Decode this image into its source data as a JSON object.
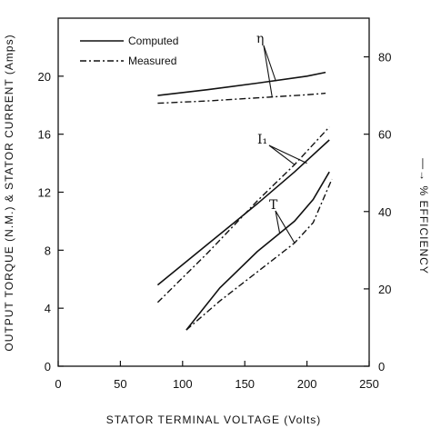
{
  "chart_data": {
    "type": "line",
    "xlabel": "STATOR TERMINAL VOLTAGE (Volts)",
    "ylabel": "OUTPUT TORQUE (N.M.) & STATOR CURRENT (Amps)",
    "y2label": "—→ % EFFICIENCY",
    "xlim": [
      0,
      250
    ],
    "ylim": [
      0,
      24
    ],
    "y2lim": [
      0,
      90
    ],
    "xticks": [
      "0",
      "50",
      "100",
      "150",
      "200",
      "250"
    ],
    "yticks": [
      "0",
      "4",
      "8",
      "12",
      "16",
      "20"
    ],
    "y2ticks": [
      "0",
      "20",
      "40",
      "60",
      "80"
    ],
    "legend": {
      "placement": "top-left",
      "entries": [
        "Computed",
        "Measured"
      ]
    },
    "annotations": [
      "η",
      "I₁",
      "T"
    ],
    "series": [
      {
        "name": "Computed",
        "group": "η",
        "axis": "right",
        "style": "solid",
        "points": [
          [
            80,
            70.0
          ],
          [
            120,
            71.5
          ],
          [
            160,
            73.2
          ],
          [
            200,
            75.0
          ],
          [
            215,
            76.0
          ]
        ]
      },
      {
        "name": "Measured",
        "group": "η",
        "axis": "right",
        "style": "dash-dot",
        "points": [
          [
            80,
            68.0
          ],
          [
            120,
            68.6
          ],
          [
            160,
            69.4
          ],
          [
            200,
            70.2
          ],
          [
            215,
            70.6
          ]
        ]
      },
      {
        "name": "Computed",
        "group": "I₁",
        "axis": "left",
        "style": "solid",
        "points": [
          [
            80,
            5.6
          ],
          [
            120,
            8.4
          ],
          [
            160,
            11.2
          ],
          [
            190,
            13.4
          ],
          [
            218,
            15.6
          ]
        ]
      },
      {
        "name": "Measured",
        "group": "I₁",
        "axis": "left",
        "style": "dash-dot",
        "points": [
          [
            80,
            4.4
          ],
          [
            120,
            7.8
          ],
          [
            160,
            11.4
          ],
          [
            190,
            13.9
          ],
          [
            218,
            16.5
          ]
        ]
      },
      {
        "name": "Computed",
        "group": "T",
        "axis": "left",
        "style": "solid",
        "points": [
          [
            103,
            2.5
          ],
          [
            130,
            5.4
          ],
          [
            160,
            7.9
          ],
          [
            190,
            10.0
          ],
          [
            205,
            11.5
          ],
          [
            218,
            13.4
          ]
        ]
      },
      {
        "name": "Measured",
        "group": "T",
        "axis": "left",
        "style": "dash-dot",
        "points": [
          [
            103,
            2.5
          ],
          [
            130,
            4.5
          ],
          [
            160,
            6.5
          ],
          [
            190,
            8.5
          ],
          [
            205,
            9.9
          ],
          [
            220,
            12.9
          ]
        ]
      }
    ]
  }
}
